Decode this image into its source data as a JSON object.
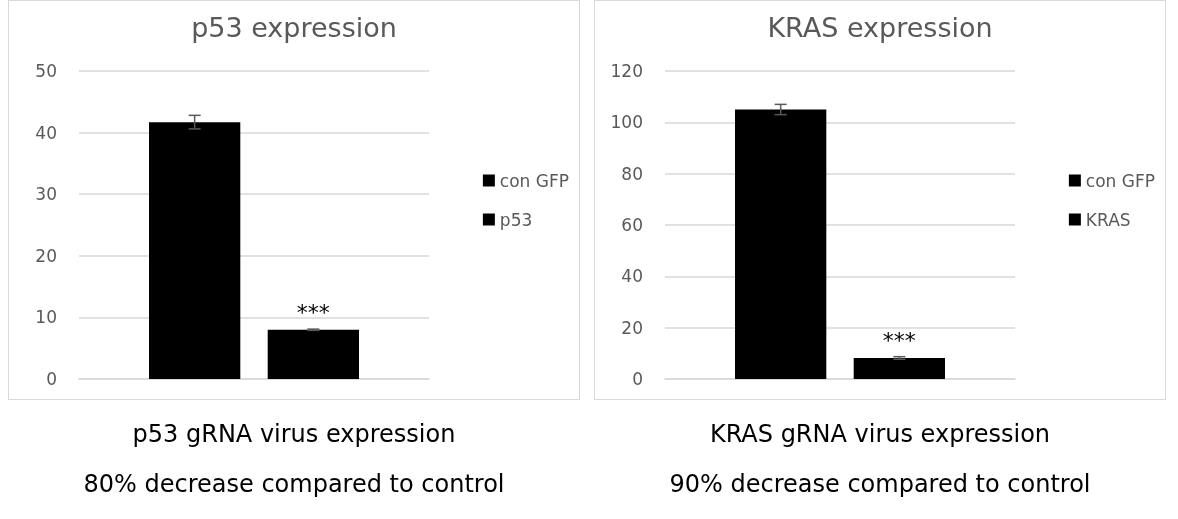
{
  "chart_data": [
    {
      "type": "bar",
      "title": "p53 expression",
      "categories": [
        null
      ],
      "series": [
        {
          "name": "con GFP",
          "color": "#000000",
          "values": [
            41.7
          ],
          "errors": [
            1.1
          ]
        },
        {
          "name": "p53",
          "color": "#000000",
          "values": [
            8.0
          ],
          "errors": [
            0.1
          ]
        }
      ],
      "ylim": [
        0,
        50
      ],
      "yticks": [
        0,
        10,
        20,
        30,
        40,
        50
      ],
      "grid": "y",
      "legend": "right",
      "annotations": [
        {
          "text": "***",
          "y": 8.0
        },
        "p53 gRNA virus expression",
        "80% decrease compared to control"
      ]
    },
    {
      "type": "bar",
      "title": "KRAS expression",
      "categories": [
        null
      ],
      "series": [
        {
          "name": "con GFP",
          "color": "#000000",
          "values": [
            105
          ],
          "errors": [
            2
          ]
        },
        {
          "name": "KRAS",
          "color": "#000000",
          "values": [
            8.2
          ],
          "errors": [
            0.5
          ]
        }
      ],
      "ylim": [
        0,
        120
      ],
      "yticks": [
        0,
        20,
        40,
        60,
        80,
        100,
        120
      ],
      "grid": "y",
      "legend": "right",
      "annotations": [
        {
          "text": "***",
          "y": 8.2
        },
        "KRAS gRNA virus expression",
        "90% decrease compared to control"
      ]
    }
  ]
}
